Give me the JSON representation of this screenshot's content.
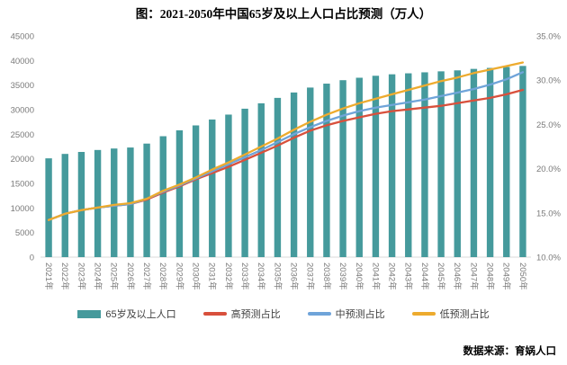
{
  "title": "图：2021-2050年中国65岁及以上人口占比预测（万人）",
  "source": "数据来源：育娲人口",
  "colors": {
    "bar": "#459A9C",
    "line_high": "#D8503C",
    "line_mid": "#6FA4D9",
    "line_low": "#EDAB2E",
    "axis_text": "#7A7A7A",
    "baseline": "#D9D9D9"
  },
  "chart_data": {
    "type": "bar",
    "combo": "bars with overlaid lines",
    "title": "图：2021-2050年中国65岁及以上人口占比预测（万人）",
    "grid": false,
    "legend_position": "bottom",
    "categories": [
      "2021年",
      "2022年",
      "2023年",
      "2024年",
      "2025年",
      "2026年",
      "2027年",
      "2028年",
      "2029年",
      "2030年",
      "2031年",
      "2032年",
      "2033年",
      "2034年",
      "2035年",
      "2036年",
      "2037年",
      "2038年",
      "2039年",
      "2040年",
      "2041年",
      "2042年",
      "2043年",
      "2044年",
      "2045年",
      "2046年",
      "2047年",
      "2048年",
      "2049年",
      "2050年"
    ],
    "bar_series": {
      "name": "65岁及以上人口",
      "axis": "left",
      "color": "#459A9C",
      "values": [
        20100,
        21000,
        21400,
        21800,
        22100,
        22300,
        23100,
        24600,
        25800,
        26800,
        28000,
        29000,
        30200,
        31300,
        32400,
        33500,
        34500,
        35300,
        36000,
        36500,
        36900,
        37200,
        37400,
        37600,
        37800,
        38000,
        38300,
        38500,
        38700,
        38900
      ]
    },
    "line_series": [
      {
        "name": "高预测占比",
        "axis": "right",
        "color": "#D8503C",
        "values": [
          14.2,
          14.9,
          15.3,
          15.6,
          15.8,
          16.0,
          16.5,
          17.3,
          18.0,
          18.8,
          19.5,
          20.2,
          21.0,
          21.8,
          22.6,
          23.5,
          24.3,
          24.9,
          25.4,
          25.8,
          26.2,
          26.5,
          26.7,
          26.9,
          27.1,
          27.4,
          27.7,
          28.0,
          28.4,
          28.9
        ]
      },
      {
        "name": "中预测占比",
        "axis": "right",
        "color": "#6FA4D9",
        "values": [
          14.2,
          14.9,
          15.3,
          15.6,
          15.8,
          16.0,
          16.6,
          17.4,
          18.1,
          18.9,
          19.7,
          20.5,
          21.3,
          22.1,
          23.0,
          23.9,
          24.7,
          25.4,
          26.0,
          26.5,
          26.9,
          27.2,
          27.5,
          27.8,
          28.2,
          28.6,
          29.0,
          29.5,
          30.1,
          30.9
        ]
      },
      {
        "name": "低预测占比",
        "axis": "right",
        "color": "#EDAB2E",
        "values": [
          14.2,
          14.9,
          15.3,
          15.6,
          15.9,
          16.1,
          16.6,
          17.5,
          18.2,
          19.0,
          19.9,
          20.7,
          21.6,
          22.5,
          23.4,
          24.4,
          25.3,
          26.1,
          26.8,
          27.4,
          27.9,
          28.4,
          28.9,
          29.4,
          29.9,
          30.3,
          30.8,
          31.2,
          31.6,
          32.0
        ]
      }
    ],
    "left_axis": {
      "min": 0,
      "max": 45000,
      "step": 5000,
      "unit": "万人",
      "tick_labels": [
        "0",
        "5000",
        "10000",
        "15000",
        "20000",
        "25000",
        "30000",
        "35000",
        "40000",
        "45000"
      ]
    },
    "right_axis": {
      "min": 10,
      "max": 35,
      "step": 5,
      "format": "percent",
      "tick_labels": [
        "10.0%",
        "15.0%",
        "20.0%",
        "25.0%",
        "30.0%",
        "35.0%"
      ]
    }
  },
  "legend": {
    "bar_label": "65岁及以上人口",
    "high_label": "高预测占比",
    "mid_label": "中预测占比",
    "low_label": "低预测占比"
  }
}
